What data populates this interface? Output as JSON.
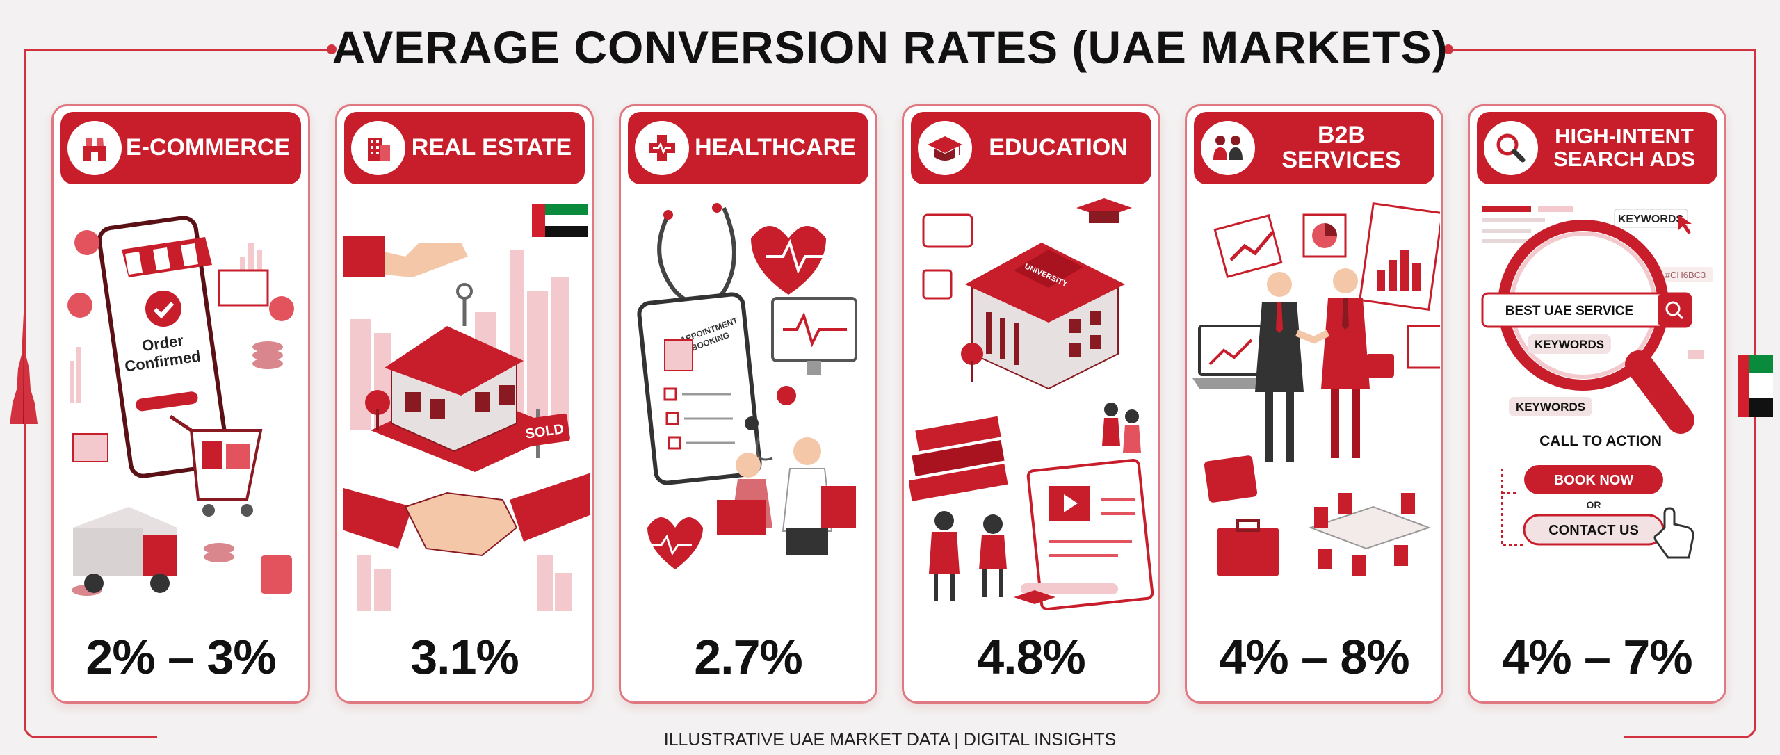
{
  "title": "AVERAGE CONVERSION RATES (UAE MARKETS)",
  "footer": "ILLUSTRATIVE UAE MARKET DATA | DIGITAL INSIGHTS",
  "accent": "#c81e2c",
  "cards": [
    {
      "label": "E-COMMERCE",
      "icon": "storefront-icon",
      "value": "2% – 3%",
      "texts": [
        "Order",
        "Confirmed"
      ]
    },
    {
      "label": "REAL ESTATE",
      "icon": "building-icon",
      "value": "3.1%",
      "texts": [
        "SOLD"
      ]
    },
    {
      "label": "HEALTHCARE",
      "icon": "medical-cross-icon",
      "value": "2.7%",
      "texts": [
        "APPOINTMENT",
        "BOOKING"
      ]
    },
    {
      "label": "EDUCATION",
      "icon": "graduation-cap-icon",
      "value": "4.8%",
      "texts": [
        "UNIVERSITY"
      ]
    },
    {
      "label": "B2B SERVICES",
      "icon": "business-people-icon",
      "value": "4% – 8%",
      "texts": []
    },
    {
      "label": "HIGH-INTENT\nSEARCH ADS",
      "label_line1": "HIGH-INTENT",
      "label_line2": "SEARCH ADS",
      "icon": "magnifier-icon",
      "value": "4% – 7%",
      "texts": [
        "KEYWORDS",
        "#CH6BC3",
        "BEST UAE SERVICE",
        "KEYWORDS",
        "KEYWORDS",
        "CALL TO ACTION",
        "BOOK NOW",
        "OR",
        "CONTACT US"
      ]
    }
  ]
}
